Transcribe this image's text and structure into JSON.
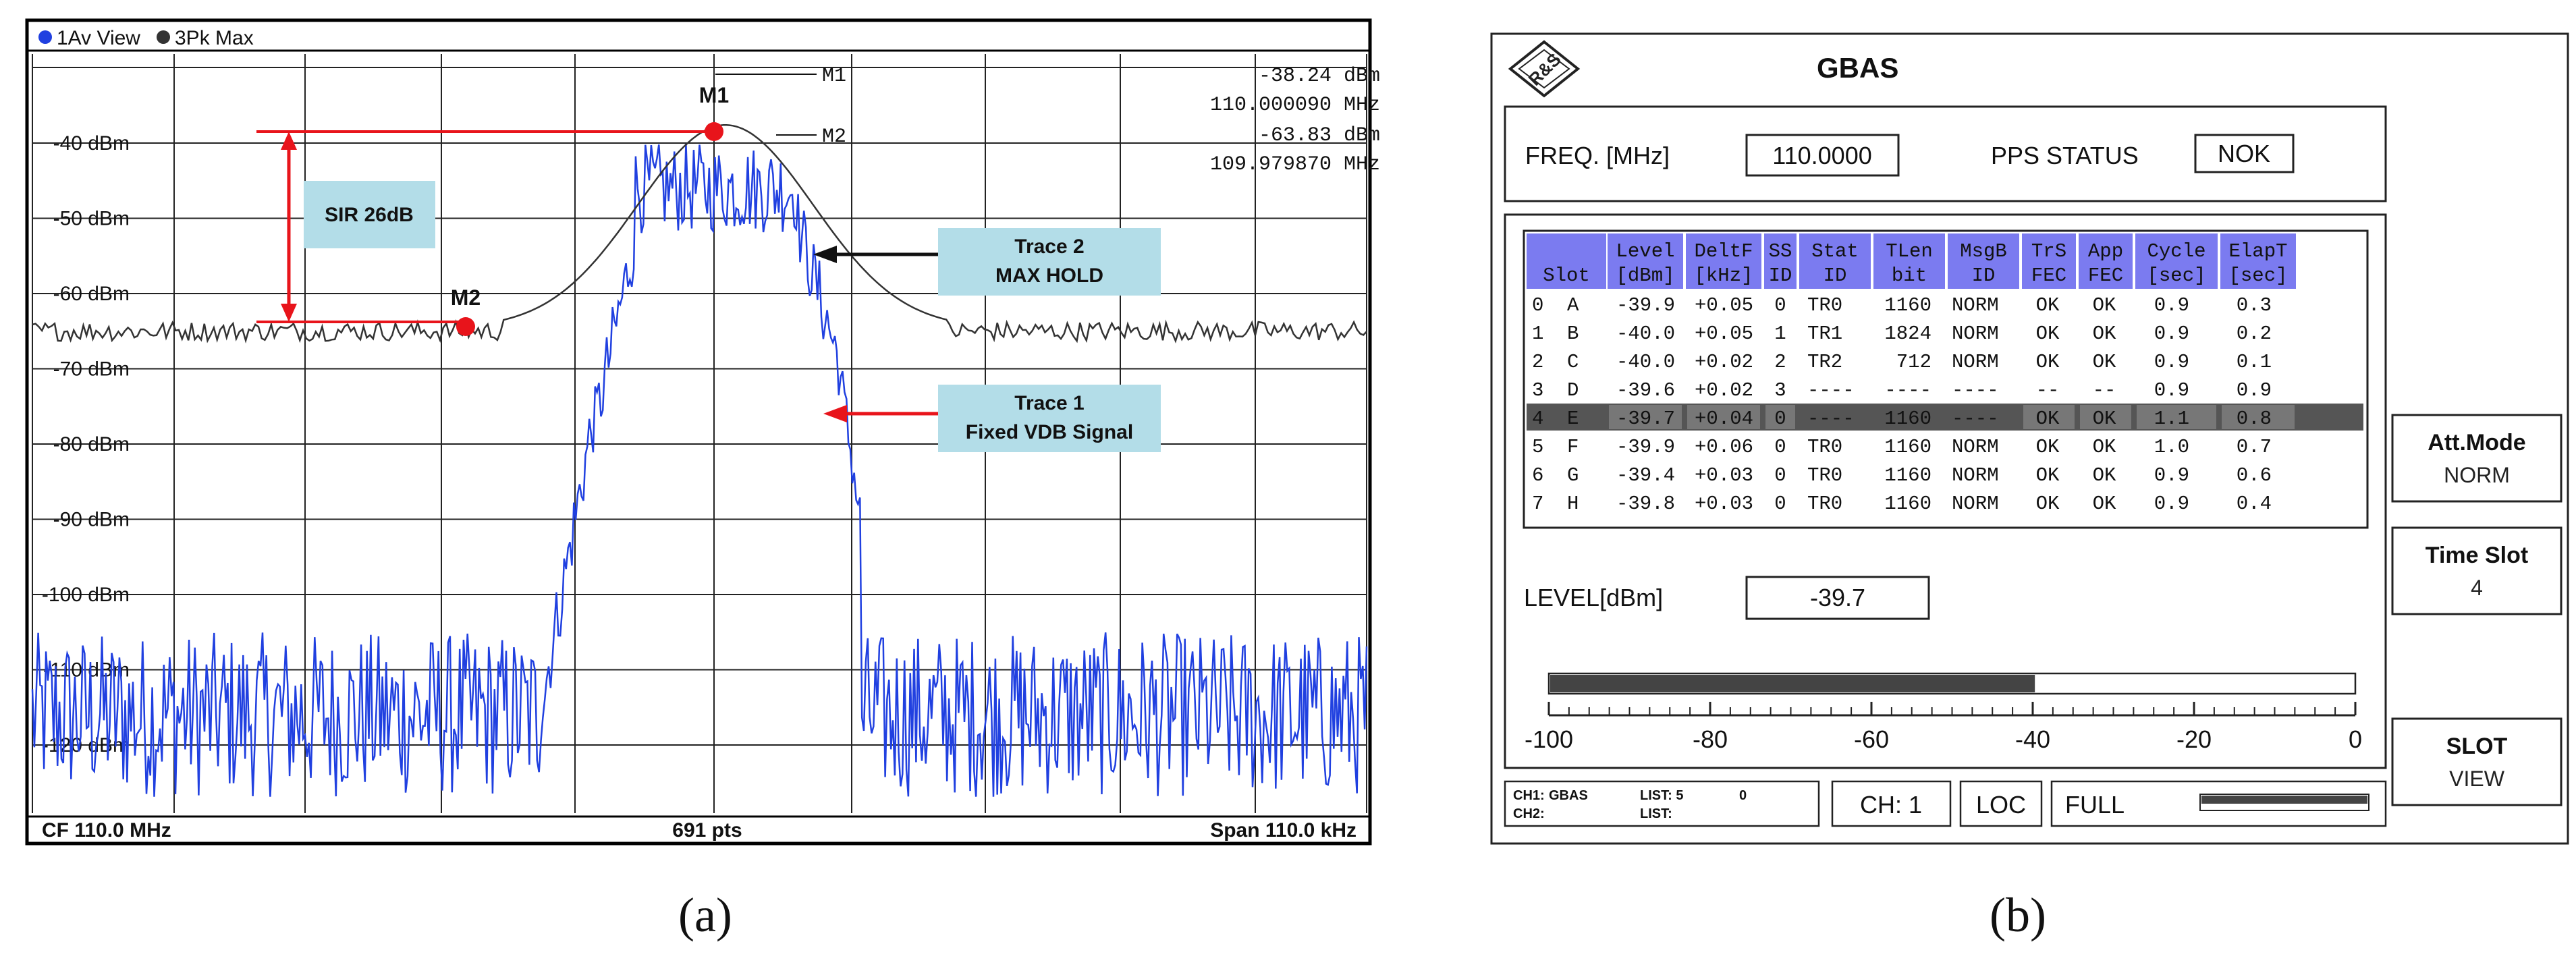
{
  "panel_a": {
    "header": {
      "trace1_label": "1Av View",
      "trace2_label": "3Pk Max"
    },
    "marker_readout": {
      "m1_tag": "M1",
      "m1_level": "-38.24 dBm",
      "m1_freq": "110.000090 MHz",
      "m2_tag": "M2",
      "m2_level": "-63.83 dBm",
      "m2_freq": "109.979870 MHz"
    },
    "y_ticks": [
      "-40 dBm",
      "-50 dBm",
      "-60 dBm",
      "-70 dBm",
      "-80 dBm",
      "-90 dBm",
      "-100 dBm",
      "-110 dBm",
      "-120 dBm"
    ],
    "marker_m1_label": "M1",
    "marker_m2_label": "M2",
    "sir_label": "SIR 26dB",
    "callout_trace2": {
      "line1": "Trace 2",
      "line2": "MAX HOLD"
    },
    "callout_trace1": {
      "line1": "Trace 1",
      "line2": "Fixed VDB Signal"
    },
    "footer": {
      "cf": "CF 110.0 MHz",
      "pts": "691 pts",
      "span": "Span 110.0 kHz"
    },
    "colors": {
      "trace1": "#2040e0",
      "trace2": "#333333",
      "annotation": "#e8141b",
      "callout_bg": "#b3dde8"
    }
  },
  "panel_b": {
    "title": "GBAS",
    "logo_text": "R&S",
    "freq_label": "FREQ. [MHz]",
    "freq_value": "110.0000",
    "pps_label": "PPS STATUS",
    "pps_value": "NOK",
    "table": {
      "headers": [
        [
          "",
          "Slot"
        ],
        [
          "Level",
          "[dBm]"
        ],
        [
          "DeltF",
          "[kHz]"
        ],
        [
          "SS",
          "ID"
        ],
        [
          "Stat",
          "ID"
        ],
        [
          "TLen",
          "bit"
        ],
        [
          "MsgB",
          "ID"
        ],
        [
          "TrS",
          "FEC"
        ],
        [
          "App",
          "FEC"
        ],
        [
          "Cycle",
          "[sec]"
        ],
        [
          "ElapT",
          "[sec]"
        ]
      ],
      "rows": [
        [
          "0",
          "A",
          "-39.9",
          "+0.05",
          "0",
          "TR0",
          "1160",
          "NORM",
          "OK",
          "OK",
          "0.9",
          "0.3"
        ],
        [
          "1",
          "B",
          "-40.0",
          "+0.05",
          "1",
          "TR1",
          "1824",
          "NORM",
          "OK",
          "OK",
          "0.9",
          "0.2"
        ],
        [
          "2",
          "C",
          "-40.0",
          "+0.02",
          "2",
          "TR2",
          "712",
          "NORM",
          "OK",
          "OK",
          "0.9",
          "0.1"
        ],
        [
          "3",
          "D",
          "-39.6",
          "+0.02",
          "3",
          "----",
          "----",
          "----",
          "--",
          "--",
          "0.9",
          "0.9"
        ],
        [
          "4",
          "E",
          "-39.7",
          "+0.04",
          "0",
          "----",
          "1160",
          "----",
          "OK",
          "OK",
          "1.1",
          "0.8"
        ],
        [
          "5",
          "F",
          "-39.9",
          "+0.06",
          "0",
          "TR0",
          "1160",
          "NORM",
          "OK",
          "OK",
          "1.0",
          "0.7"
        ],
        [
          "6",
          "G",
          "-39.4",
          "+0.03",
          "0",
          "TR0",
          "1160",
          "NORM",
          "OK",
          "OK",
          "0.9",
          "0.6"
        ],
        [
          "7",
          "H",
          "-39.8",
          "+0.03",
          "0",
          "TR0",
          "1160",
          "NORM",
          "OK",
          "OK",
          "0.9",
          "0.4"
        ]
      ],
      "selected_row": 4
    },
    "level_label": "LEVEL[dBm]",
    "level_value": "-39.7",
    "level_bar": {
      "value_dbm": -39.7,
      "min": -100,
      "max": 0
    },
    "scale_labels": [
      "-100",
      "-80",
      "-60",
      "-40",
      "-20",
      "0"
    ],
    "status": {
      "ch1_label": "CH1:",
      "ch1_value": "GBAS",
      "list1_label": "LIST: 5",
      "list1_value": "0",
      "ch2_label": "CH2:",
      "list2_label": "LIST:",
      "ch_display": "CH: 1",
      "loc": "LOC",
      "full": "FULL"
    },
    "softkeys": [
      {
        "line1": "Att.Mode",
        "line2": "NORM"
      },
      {
        "line1": "Time Slot",
        "line2": "4"
      },
      {
        "line1": "SLOT",
        "line2": "VIEW"
      }
    ],
    "colors": {
      "header_bg": "#7b7bf0",
      "selected_bg": "#555555"
    }
  },
  "captions": {
    "a": "(a)",
    "b": "(b)"
  }
}
